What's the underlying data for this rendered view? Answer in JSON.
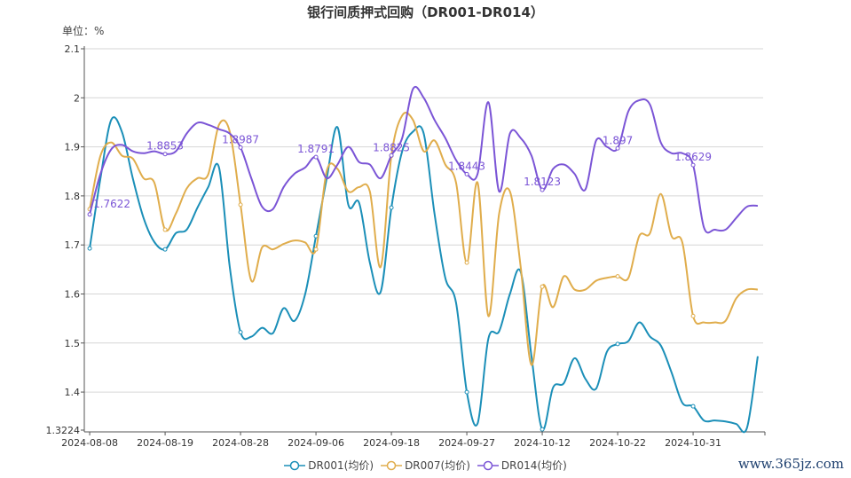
{
  "chart_data": {
    "type": "line",
    "title": "银行间质押式回购（DR001-DR014）",
    "ylabel": "单位：%",
    "ylim": [
      1.3224,
      2.1
    ],
    "yticks": [
      "1.3224",
      "1.4",
      "1.5",
      "1.6",
      "1.7",
      "1.8",
      "1.9",
      "2",
      "2.1"
    ],
    "grid": true,
    "legend_position": "bottom",
    "smooth": true,
    "x": [
      "2024-08-08",
      "2024-08-09",
      "2024-08-12",
      "2024-08-13",
      "2024-08-14",
      "2024-08-15",
      "2024-08-16",
      "2024-08-19",
      "2024-08-20",
      "2024-08-21",
      "2024-08-22",
      "2024-08-23",
      "2024-08-26",
      "2024-08-27",
      "2024-08-28",
      "2024-08-29",
      "2024-08-30",
      "2024-09-02",
      "2024-09-03",
      "2024-09-04",
      "2024-09-05",
      "2024-09-06",
      "2024-09-09",
      "2024-09-10",
      "2024-09-11",
      "2024-09-12",
      "2024-09-13",
      "2024-09-14",
      "2024-09-18",
      "2024-09-19",
      "2024-09-20",
      "2024-09-23",
      "2024-09-24",
      "2024-09-25",
      "2024-09-26",
      "2024-09-27",
      "2024-09-29",
      "2024-09-30",
      "2024-10-08",
      "2024-10-09",
      "2024-10-10",
      "2024-10-11",
      "2024-10-12",
      "2024-10-14",
      "2024-10-15",
      "2024-10-16",
      "2024-10-17",
      "2024-10-18",
      "2024-10-21",
      "2024-10-22",
      "2024-10-23",
      "2024-10-24",
      "2024-10-25",
      "2024-10-28",
      "2024-10-29",
      "2024-10-30",
      "2024-10-31",
      "2024-11-01",
      "2024-11-04",
      "2024-11-05",
      "2024-11-06",
      "2024-11-07",
      "2024-11-08"
    ],
    "xtick_labels": [
      "2024-08-08",
      "2024-08-19",
      "2024-08-28",
      "2024-09-06",
      "2024-09-18",
      "2024-09-27",
      "2024-10-12",
      "2024-10-22",
      "2024-10-31"
    ],
    "series": [
      {
        "name": "DR001(均价)",
        "color": "#1b8fb8",
        "values": [
          1.693,
          1.836,
          1.955,
          1.93,
          1.836,
          1.755,
          1.706,
          1.691,
          1.724,
          1.731,
          1.776,
          1.818,
          1.858,
          1.655,
          1.522,
          1.513,
          1.531,
          1.52,
          1.571,
          1.545,
          1.6,
          1.718,
          1.836,
          1.94,
          1.782,
          1.786,
          1.664,
          1.604,
          1.776,
          1.891,
          1.931,
          1.927,
          1.764,
          1.633,
          1.582,
          1.4,
          1.336,
          1.509,
          1.524,
          1.6,
          1.645,
          1.473,
          1.324,
          1.409,
          1.418,
          1.469,
          1.427,
          1.407,
          1.482,
          1.498,
          1.504,
          1.542,
          1.513,
          1.495,
          1.44,
          1.378,
          1.371,
          1.342,
          1.342,
          1.34,
          1.335,
          1.327,
          1.473
        ]
      },
      {
        "name": "DR007(均价)",
        "color": "#e0ad4c",
        "values": [
          1.773,
          1.882,
          1.909,
          1.882,
          1.876,
          1.836,
          1.827,
          1.731,
          1.764,
          1.815,
          1.836,
          1.844,
          1.945,
          1.931,
          1.782,
          1.627,
          1.695,
          1.691,
          1.702,
          1.709,
          1.705,
          1.691,
          1.851,
          1.855,
          1.809,
          1.818,
          1.809,
          1.655,
          1.882,
          1.964,
          1.955,
          1.891,
          1.913,
          1.864,
          1.827,
          1.664,
          1.827,
          1.555,
          1.764,
          1.809,
          1.655,
          1.455,
          1.615,
          1.573,
          1.636,
          1.609,
          1.609,
          1.627,
          1.633,
          1.636,
          1.633,
          1.718,
          1.724,
          1.804,
          1.718,
          1.705,
          1.555,
          1.542,
          1.542,
          1.545,
          1.591,
          1.609,
          1.609
        ]
      },
      {
        "name": "DR014(均价)",
        "color": "#7b55d6",
        "values": [
          1.7622,
          1.845,
          1.895,
          1.904,
          1.891,
          1.887,
          1.891,
          1.8853,
          1.891,
          1.927,
          1.949,
          1.945,
          1.936,
          1.927,
          1.8987,
          1.836,
          1.778,
          1.773,
          1.818,
          1.845,
          1.858,
          1.8791,
          1.836,
          1.864,
          1.9,
          1.869,
          1.864,
          1.836,
          1.8825,
          1.918,
          2.018,
          2.0,
          1.955,
          1.918,
          1.873,
          1.8443,
          1.845,
          1.991,
          1.809,
          1.927,
          1.918,
          1.882,
          1.8123,
          1.855,
          1.864,
          1.845,
          1.813,
          1.913,
          1.9,
          1.897,
          1.973,
          1.995,
          1.986,
          1.909,
          1.887,
          1.887,
          1.8629,
          1.736,
          1.731,
          1.731,
          1.755,
          1.778,
          1.78
        ]
      }
    ],
    "data_labels": {
      "series": "DR014(均价)",
      "values": [
        "1.7622",
        "1.8853",
        "1.8987",
        "1.8791",
        "1.8825",
        "1.8443",
        "1.8123",
        "1.897",
        "1.8629"
      ]
    }
  },
  "watermark": "www.365jz.com"
}
